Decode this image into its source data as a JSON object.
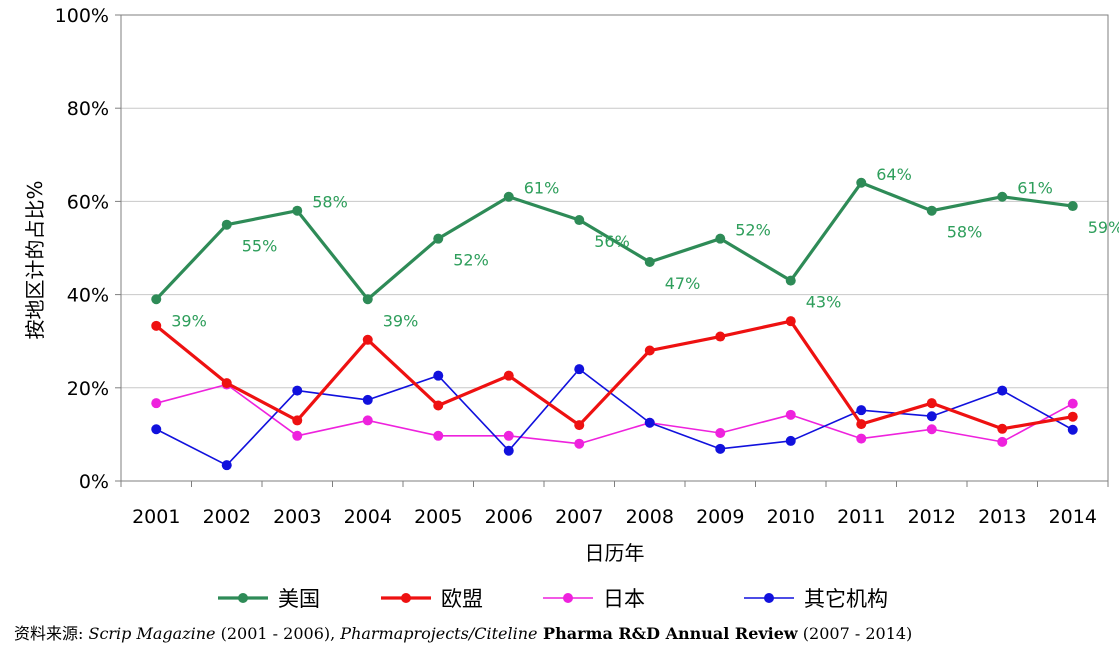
{
  "chart_data": {
    "type": "line",
    "xlabel": "日历年",
    "ylabel": "按地区计的占比%",
    "categories": [
      "2001",
      "2002",
      "2003",
      "2004",
      "2005",
      "2006",
      "2007",
      "2008",
      "2009",
      "2010",
      "2011",
      "2012",
      "2013",
      "2014"
    ],
    "y_ticks": [
      "0%",
      "20%",
      "40%",
      "60%",
      "80%",
      "100%"
    ],
    "ylim": [
      0,
      100
    ],
    "grid": true,
    "legend_position": "bottom",
    "series": [
      {
        "name": "美国",
        "color": "#2e8b57",
        "width": 3.2,
        "labels": true,
        "values": [
          39,
          55,
          58,
          39,
          52,
          61,
          56,
          47,
          52,
          43,
          64,
          58,
          61,
          59
        ],
        "data_labels": [
          "39%",
          "55%",
          "58%",
          "39%",
          "52%",
          "61%",
          "56%",
          "47%",
          "52%",
          "43%",
          "64%",
          "58%",
          "61%",
          "59%"
        ]
      },
      {
        "name": "欧盟",
        "color": "#ee1111",
        "width": 3.2,
        "values": [
          33.3,
          21,
          13,
          30.3,
          16.2,
          22.6,
          12,
          28,
          31,
          34.3,
          12.2,
          16.7,
          11.2,
          13.8
        ]
      },
      {
        "name": "日本",
        "color": "#ee22dd",
        "width": 1.6,
        "values": [
          16.7,
          20.7,
          9.7,
          13,
          9.7,
          9.7,
          8,
          12.5,
          10.3,
          14.2,
          9.1,
          11.1,
          8.4,
          16.6
        ]
      },
      {
        "name": "其它机构",
        "color": "#1111dd",
        "width": 1.6,
        "values": [
          11.1,
          3.4,
          19.4,
          17.4,
          22.6,
          6.5,
          24,
          12.5,
          6.9,
          8.6,
          15.2,
          13.9,
          19.4,
          11
        ]
      }
    ]
  },
  "source": {
    "prefix": "资料来源: ",
    "mag": "Scrip Magazine",
    "years1": " (2001 - 2006), ",
    "pp": "Pharmaprojects/Citeline",
    "review": " Pharma R&D Annual Review",
    "years2": " (2007 - 2014)"
  }
}
